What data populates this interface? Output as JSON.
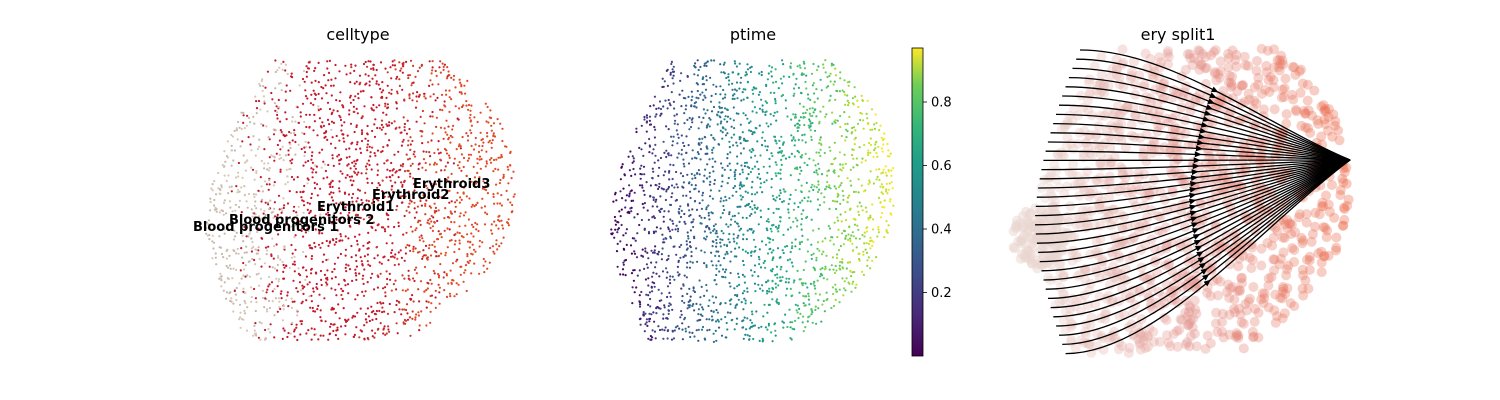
{
  "chart_data": [
    {
      "type": "scatter",
      "title": "celltype",
      "color_by": "celltype",
      "categories": [
        {
          "name": "Blood progenitors 1",
          "color": "#c7b8ad"
        },
        {
          "name": "Blood progenitors 2",
          "color": "#d8c6b7"
        },
        {
          "name": "Erythroid1",
          "color": "#c4182b"
        },
        {
          "name": "Erythroid2",
          "color": "#c83a2a"
        },
        {
          "name": "Erythroid3",
          "color": "#e14a25"
        }
      ],
      "labels_on_data": true,
      "axes": "hidden"
    },
    {
      "type": "scatter",
      "title": "ptime",
      "color_by": "ptime",
      "colormap": "viridis",
      "colorbar": {
        "min": 0.0,
        "max": 0.97,
        "ticks": [
          0.2,
          0.4,
          0.6,
          0.8
        ],
        "tick_labels": [
          "0.2",
          "0.4",
          "0.6",
          "0.8"
        ]
      },
      "axes": "hidden"
    },
    {
      "type": "scatter",
      "title": "ery split1",
      "overlay": "velocity streamlines",
      "colors": {
        "low": "#e9d5cf",
        "mid": "#e3928b",
        "high": "#eb6a4a",
        "streamline": "#000000"
      },
      "axes": "hidden"
    }
  ]
}
